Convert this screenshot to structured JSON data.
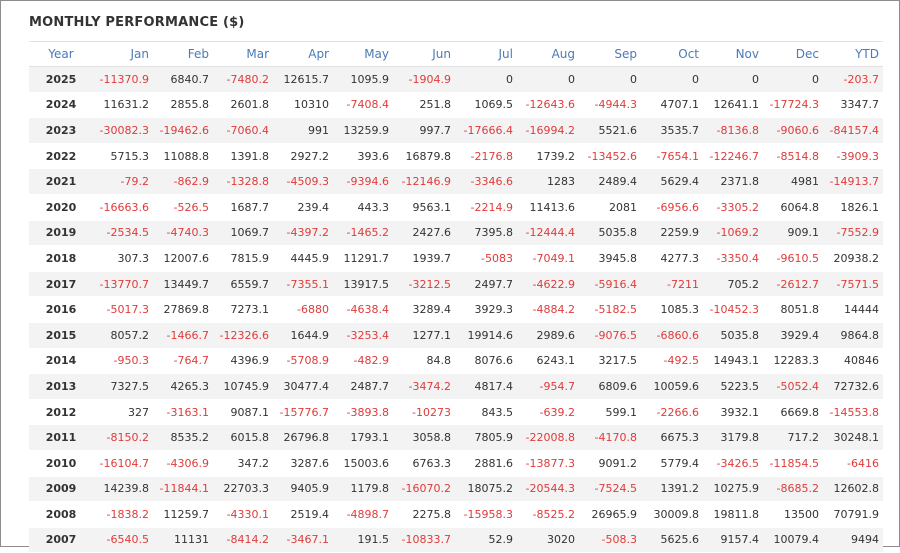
{
  "title": "MONTHLY PERFORMANCE ($)",
  "colors": {
    "header_text": "#4a7bb7",
    "negative": "#e03b3b",
    "positive": "#333333",
    "stripe": "#f3f3f3"
  },
  "headers": [
    "Year",
    "Jan",
    "Feb",
    "Mar",
    "Apr",
    "May",
    "Jun",
    "Jul",
    "Aug",
    "Sep",
    "Oct",
    "Nov",
    "Dec",
    "YTD"
  ],
  "rows": [
    [
      "2025",
      "-11370.9",
      "6840.7",
      "-7480.2",
      "12615.7",
      "1095.9",
      "-1904.9",
      "0",
      "0",
      "0",
      "0",
      "0",
      "0",
      "-203.7"
    ],
    [
      "2024",
      "11631.2",
      "2855.8",
      "2601.8",
      "10310",
      "-7408.4",
      "251.8",
      "1069.5",
      "-12643.6",
      "-4944.3",
      "4707.1",
      "12641.1",
      "-17724.3",
      "3347.7"
    ],
    [
      "2023",
      "-30082.3",
      "-19462.6",
      "-7060.4",
      "991",
      "13259.9",
      "997.7",
      "-17666.4",
      "-16994.2",
      "5521.6",
      "3535.7",
      "-8136.8",
      "-9060.6",
      "-84157.4"
    ],
    [
      "2022",
      "5715.3",
      "11088.8",
      "1391.8",
      "2927.2",
      "393.6",
      "16879.8",
      "-2176.8",
      "1739.2",
      "-13452.6",
      "-7654.1",
      "-12246.7",
      "-8514.8",
      "-3909.3"
    ],
    [
      "2021",
      "-79.2",
      "-862.9",
      "-1328.8",
      "-4509.3",
      "-9394.6",
      "-12146.9",
      "-3346.6",
      "1283",
      "2489.4",
      "5629.4",
      "2371.8",
      "4981",
      "-14913.7"
    ],
    [
      "2020",
      "-16663.6",
      "-526.5",
      "1687.7",
      "239.4",
      "443.3",
      "9563.1",
      "-2214.9",
      "11413.6",
      "2081",
      "-6956.6",
      "-3305.2",
      "6064.8",
      "1826.1"
    ],
    [
      "2019",
      "-2534.5",
      "-4740.3",
      "1069.7",
      "-4397.2",
      "-1465.2",
      "2427.6",
      "7395.8",
      "-12444.4",
      "5035.8",
      "2259.9",
      "-1069.2",
      "909.1",
      "-7552.9"
    ],
    [
      "2018",
      "307.3",
      "12007.6",
      "7815.9",
      "4445.9",
      "11291.7",
      "1939.7",
      "-5083",
      "-7049.1",
      "3945.8",
      "4277.3",
      "-3350.4",
      "-9610.5",
      "20938.2"
    ],
    [
      "2017",
      "-13770.7",
      "13449.7",
      "6559.7",
      "-7355.1",
      "13917.5",
      "-3212.5",
      "2497.7",
      "-4622.9",
      "-5916.4",
      "-7211",
      "705.2",
      "-2612.7",
      "-7571.5"
    ],
    [
      "2016",
      "-5017.3",
      "27869.8",
      "7273.1",
      "-6880",
      "-4638.4",
      "3289.4",
      "3929.3",
      "-4884.2",
      "-5182.5",
      "1085.3",
      "-10452.3",
      "8051.8",
      "14444"
    ],
    [
      "2015",
      "8057.2",
      "-1466.7",
      "-12326.6",
      "1644.9",
      "-3253.4",
      "1277.1",
      "19914.6",
      "2989.6",
      "-9076.5",
      "-6860.6",
      "5035.8",
      "3929.4",
      "9864.8"
    ],
    [
      "2014",
      "-950.3",
      "-764.7",
      "4396.9",
      "-5708.9",
      "-482.9",
      "84.8",
      "8076.6",
      "6243.1",
      "3217.5",
      "-492.5",
      "14943.1",
      "12283.3",
      "40846"
    ],
    [
      "2013",
      "7327.5",
      "4265.3",
      "10745.9",
      "30477.4",
      "2487.7",
      "-3474.2",
      "4817.4",
      "-954.7",
      "6809.6",
      "10059.6",
      "5223.5",
      "-5052.4",
      "72732.6"
    ],
    [
      "2012",
      "327",
      "-3163.1",
      "9087.1",
      "-15776.7",
      "-3893.8",
      "-10273",
      "843.5",
      "-639.2",
      "599.1",
      "-2266.6",
      "3932.1",
      "6669.8",
      "-14553.8"
    ],
    [
      "2011",
      "-8150.2",
      "8535.2",
      "6015.8",
      "26796.8",
      "1793.1",
      "3058.8",
      "7805.9",
      "-22008.8",
      "-4170.8",
      "6675.3",
      "3179.8",
      "717.2",
      "30248.1"
    ],
    [
      "2010",
      "-16104.7",
      "-4306.9",
      "347.2",
      "3287.6",
      "15003.6",
      "6763.3",
      "2881.6",
      "-13877.3",
      "9091.2",
      "5779.4",
      "-3426.5",
      "-11854.5",
      "-6416"
    ],
    [
      "2009",
      "14239.8",
      "-11844.1",
      "22703.3",
      "9405.9",
      "1179.8",
      "-16070.2",
      "18075.2",
      "-20544.3",
      "-7524.5",
      "1391.2",
      "10275.9",
      "-8685.2",
      "12602.8"
    ],
    [
      "2008",
      "-1838.2",
      "11259.7",
      "-4330.1",
      "2519.4",
      "-4898.7",
      "2275.8",
      "-15958.3",
      "-8525.2",
      "26965.9",
      "30009.8",
      "19811.8",
      "13500",
      "70791.9"
    ],
    [
      "2007",
      "-6540.5",
      "11131",
      "-8414.2",
      "-3467.1",
      "191.5",
      "-10833.7",
      "52.9",
      "3020",
      "-508.3",
      "5625.6",
      "9157.4",
      "10079.4",
      "9494"
    ]
  ]
}
